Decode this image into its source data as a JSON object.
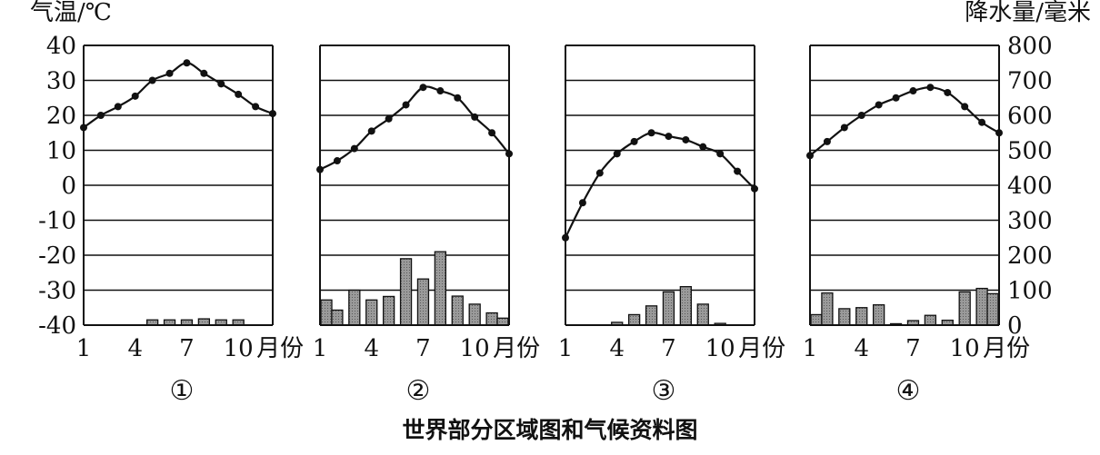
{
  "left_axis": {
    "title": "气温/℃",
    "ticks": [
      "40",
      "30",
      "20",
      "10",
      "0",
      "-10",
      "-20",
      "-30",
      "-40"
    ],
    "range": [
      -40,
      40
    ]
  },
  "right_axis": {
    "title": "降水量/毫米",
    "ticks": [
      "800",
      "700",
      "600",
      "500",
      "400",
      "300",
      "200",
      "100",
      "0"
    ],
    "range": [
      0,
      800
    ]
  },
  "x_unit_label": "月份",
  "caption": "世界部分区域图和气候资料图",
  "chart_data": [
    {
      "type": "bar",
      "panel": "①",
      "categories": [
        "1",
        "2",
        "3",
        "4",
        "5",
        "6",
        "7",
        "8",
        "9",
        "10",
        "11",
        "12"
      ],
      "x_tick_labels": [
        "1",
        "4",
        "7",
        "10"
      ],
      "temperature": [
        16.5,
        20,
        22.5,
        25.5,
        30,
        32,
        35,
        32,
        29,
        26,
        22.5,
        20.5
      ],
      "precipitation": [
        0,
        0,
        0,
        0,
        15,
        15,
        15,
        18,
        15,
        15,
        0,
        0
      ]
    },
    {
      "type": "bar",
      "panel": "②",
      "categories": [
        "1",
        "2",
        "3",
        "4",
        "5",
        "6",
        "7",
        "8",
        "9",
        "10",
        "11",
        "12"
      ],
      "x_tick_labels": [
        "1",
        "4",
        "7",
        "10"
      ],
      "temperature": [
        4.5,
        7,
        10.5,
        15.5,
        19,
        23,
        28,
        27,
        25,
        19.5,
        15,
        9
      ],
      "precipitation": [
        72,
        43,
        100,
        72,
        82,
        190,
        132,
        210,
        83,
        60,
        35,
        20
      ]
    },
    {
      "type": "bar",
      "panel": "③",
      "categories": [
        "1",
        "2",
        "3",
        "4",
        "5",
        "6",
        "7",
        "8",
        "9",
        "10",
        "11",
        "12"
      ],
      "x_tick_labels": [
        "1",
        "4",
        "7",
        "10"
      ],
      "temperature": [
        -15,
        -5,
        3.5,
        9,
        12.5,
        15,
        14,
        13,
        11,
        9,
        4,
        -1
      ],
      "precipitation": [
        0,
        0,
        0,
        8,
        30,
        55,
        95,
        110,
        60,
        5,
        0,
        0
      ]
    },
    {
      "type": "bar",
      "panel": "④",
      "categories": [
        "1",
        "2",
        "3",
        "4",
        "5",
        "6",
        "7",
        "8",
        "9",
        "10",
        "11",
        "12"
      ],
      "x_tick_labels": [
        "1",
        "4",
        "7",
        "10"
      ],
      "temperature": [
        8.5,
        12.5,
        16.5,
        20,
        23,
        25,
        27,
        28,
        26.5,
        22.5,
        18,
        15
      ],
      "precipitation": [
        30,
        92,
        47,
        50,
        58,
        4,
        13,
        28,
        14,
        95,
        105,
        90
      ]
    }
  ]
}
